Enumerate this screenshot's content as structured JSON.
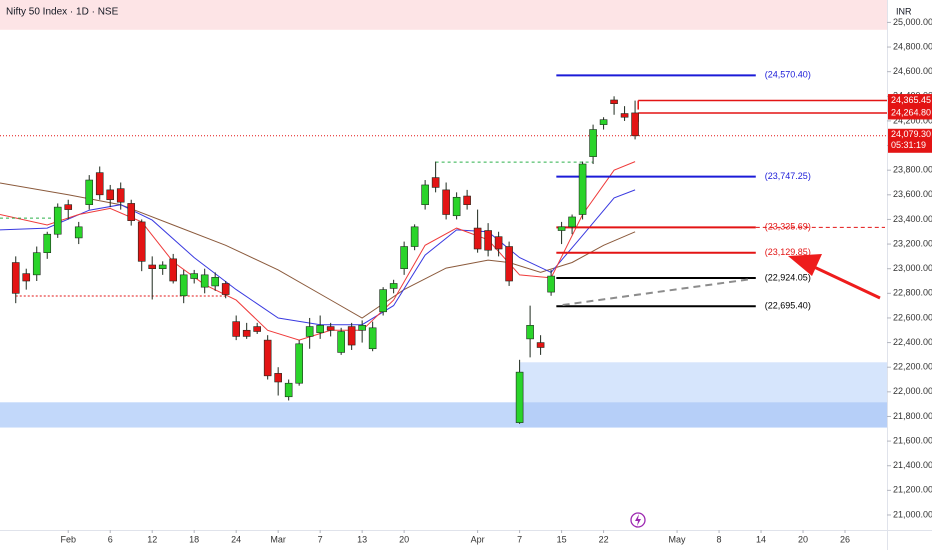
{
  "chart_data": {
    "type": "candlestick",
    "title": "Nifty 50 Index · 1D · NSE",
    "currency": "INR",
    "up_color": "#2ad42a",
    "down_color": "#e31414",
    "x": [
      0,
      1,
      2,
      3,
      4,
      5,
      6,
      7,
      8,
      9,
      10,
      11,
      12,
      13,
      14,
      15,
      16,
      17,
      18,
      19,
      20,
      21,
      22,
      23,
      24,
      25,
      26,
      27,
      28,
      29,
      30,
      31,
      32,
      33,
      34,
      35,
      36,
      37,
      38,
      39,
      40,
      41,
      42,
      43,
      44,
      45,
      46,
      47,
      48,
      49,
      50,
      51,
      52,
      53,
      54,
      55,
      56,
      57,
      58,
      59
    ],
    "open": [
      23050,
      22960,
      22950,
      23130,
      23280,
      23520,
      23250,
      23520,
      23780,
      23640,
      23650,
      23530,
      23380,
      23030,
      23000,
      23080,
      22780,
      22920,
      22850,
      22860,
      22880,
      22570,
      22500,
      22530,
      22420,
      22150,
      21960,
      22070,
      22450,
      22480,
      22530,
      22320,
      22530,
      22500,
      22350,
      22650,
      22840,
      23000,
      23180,
      23520,
      23740,
      23640,
      23430,
      23590,
      23330,
      23310,
      23260,
      23180,
      21750,
      22430,
      22400,
      22810,
      23310,
      23340,
      23440,
      23910,
      24170,
      24370,
      24260,
      24265
    ],
    "high": [
      23100,
      23000,
      23180,
      23300,
      23530,
      23560,
      23380,
      23760,
      23830,
      23680,
      23700,
      23560,
      23400,
      23100,
      23060,
      23120,
      22990,
      22990,
      23000,
      22970,
      22900,
      22620,
      22560,
      22560,
      22460,
      22200,
      22100,
      22420,
      22600,
      22620,
      22560,
      22520,
      22560,
      22580,
      22570,
      22850,
      22910,
      23220,
      23360,
      23720,
      23870,
      23700,
      23620,
      23640,
      23480,
      23370,
      23300,
      23220,
      22260,
      22700,
      22460,
      22990,
      23380,
      23440,
      23870,
      24170,
      24230,
      24400,
      24320,
      24365
    ],
    "low": [
      22720,
      22830,
      22900,
      23080,
      23250,
      23400,
      23200,
      23480,
      23560,
      23500,
      23480,
      23350,
      22980,
      22750,
      22950,
      22880,
      22720,
      22880,
      22800,
      22820,
      22760,
      22420,
      22430,
      22470,
      22100,
      21970,
      21930,
      22050,
      22350,
      22430,
      22450,
      22300,
      22340,
      22400,
      22330,
      22620,
      22800,
      22950,
      23150,
      23480,
      23620,
      23400,
      23400,
      23480,
      23130,
      23100,
      23100,
      22860,
      21740,
      22280,
      22300,
      22780,
      23200,
      23280,
      23400,
      23850,
      24130,
      24250,
      24200,
      24050
    ],
    "close": [
      22800,
      22900,
      23130,
      23280,
      23500,
      23480,
      23340,
      23720,
      23600,
      23560,
      23540,
      23390,
      23060,
      23000,
      23030,
      22900,
      22950,
      22960,
      22950,
      22930,
      22790,
      22450,
      22450,
      22490,
      22130,
      22080,
      22070,
      22390,
      22530,
      22540,
      22500,
      22490,
      22380,
      22540,
      22520,
      22830,
      22880,
      23180,
      23340,
      23680,
      23660,
      23440,
      23580,
      23520,
      23160,
      23150,
      23160,
      22900,
      22160,
      22540,
      22360,
      22940,
      23340,
      23420,
      23850,
      24130,
      24210,
      24340,
      24230,
      24079.3
    ],
    "xlim": [
      -1.5,
      83
    ],
    "ylim": [
      20878,
      25182
    ],
    "xticks": [
      {
        "value": 5,
        "label": "Feb"
      },
      {
        "value": 9,
        "label": "6"
      },
      {
        "value": 13,
        "label": "12"
      },
      {
        "value": 17,
        "label": "18"
      },
      {
        "value": 21,
        "label": "24"
      },
      {
        "value": 25,
        "label": "Mar"
      },
      {
        "value": 29,
        "label": "7"
      },
      {
        "value": 33,
        "label": "13"
      },
      {
        "value": 37,
        "label": "20"
      },
      {
        "value": 44,
        "label": "Apr"
      },
      {
        "value": 48,
        "label": "7"
      },
      {
        "value": 52,
        "label": "15"
      },
      {
        "value": 56,
        "label": "22"
      },
      {
        "value": 63,
        "label": "May"
      },
      {
        "value": 67,
        "label": "8"
      },
      {
        "value": 71,
        "label": "14"
      },
      {
        "value": 75,
        "label": "20"
      },
      {
        "value": 79,
        "label": "26"
      }
    ],
    "yticks": [
      {
        "value": 21000,
        "label": "21,000.00"
      },
      {
        "value": 21200,
        "label": "21,200.00"
      },
      {
        "value": 21400,
        "label": "21,400.00"
      },
      {
        "value": 21600,
        "label": "21,600.00"
      },
      {
        "value": 21800,
        "label": "21,800.00"
      },
      {
        "value": 22000,
        "label": "22,000.00"
      },
      {
        "value": 22200,
        "label": "22,200.00"
      },
      {
        "value": 22400,
        "label": "22,400.00"
      },
      {
        "value": 22600,
        "label": "22,600.00"
      },
      {
        "value": 22800,
        "label": "22,800.00"
      },
      {
        "value": 23000,
        "label": "23,000.00"
      },
      {
        "value": 23200,
        "label": "23,200.00"
      },
      {
        "value": 23400,
        "label": "23,400.00"
      },
      {
        "value": 23600,
        "label": "23,600.00"
      },
      {
        "value": 23800,
        "label": "23,800.00"
      },
      {
        "value": 24000,
        "label": "24,000.00"
      },
      {
        "value": 24200,
        "label": "24,200.00"
      },
      {
        "value": 24400,
        "label": "24,400.00"
      },
      {
        "value": 24600,
        "label": "24,600.00"
      },
      {
        "value": 24800,
        "label": "24,800.00"
      },
      {
        "value": 25000,
        "label": "25,000.00"
      }
    ],
    "zones": [
      {
        "x": [
          -1.5,
          83
        ],
        "ylim": [
          24940,
          25182
        ],
        "color": "#fde4e6"
      },
      {
        "x": [
          48,
          83
        ],
        "ylim": [
          21710,
          22240
        ],
        "color": "#d6e5fc"
      },
      {
        "x": [
          -1.5,
          48
        ],
        "ylim": [
          21710,
          21915
        ],
        "color": "#c2d8fa"
      },
      {
        "x": [
          48,
          83
        ],
        "ylim": [
          21710,
          21915
        ],
        "color": "#b6cff8"
      }
    ],
    "moving_averages": [
      {
        "color": "#8b5a3c",
        "x": [
          -1.5,
          5,
          10,
          15,
          20,
          25,
          30,
          33,
          37,
          41,
          45,
          47,
          50,
          53,
          56,
          59
        ],
        "values": [
          23696,
          23600,
          23520,
          23355,
          23190,
          22990,
          22746,
          22600,
          22830,
          23005,
          23070,
          23050,
          22970,
          23050,
          23190,
          23300
        ]
      },
      {
        "color": "#3a3ae0",
        "x": [
          -1.5,
          3,
          7,
          10,
          13,
          17,
          21,
          25,
          29,
          33,
          36,
          39,
          42,
          45,
          48,
          51,
          54,
          57,
          59
        ],
        "values": [
          23315,
          23330,
          23475,
          23520,
          23395,
          23090,
          22830,
          22600,
          22545,
          22545,
          22700,
          23110,
          23315,
          23300,
          23090,
          22970,
          23270,
          23575,
          23640
        ]
      },
      {
        "color": "#ef3b3b",
        "x": [
          -1.5,
          3,
          6,
          9,
          12,
          15,
          18,
          21,
          24,
          27,
          30,
          33,
          36,
          39,
          42,
          45,
          48,
          51,
          54,
          57,
          59
        ],
        "values": [
          23440,
          23355,
          23440,
          23490,
          23380,
          23055,
          22870,
          22745,
          22500,
          22420,
          22500,
          22500,
          22745,
          23190,
          23330,
          23235,
          22950,
          22925,
          23440,
          23800,
          23870
        ]
      }
    ],
    "levels": [
      {
        "value": 24570.4,
        "label": "(24,570.40)",
        "x": [
          51.5,
          70.5
        ],
        "color": "#1b1bd8",
        "width": 2
      },
      {
        "value": 23747.25,
        "label": "(23,747.25)",
        "x": [
          51.5,
          70.5
        ],
        "color": "#1b1bd8",
        "width": 2
      },
      {
        "value": 23335.69,
        "label": "(23,335.69)",
        "x": [
          51.5,
          70.5
        ],
        "color": "#e31414",
        "width": 2,
        "extend_dashed": true
      },
      {
        "value": 23129.85,
        "label": "(23,129.85)",
        "x": [
          51.5,
          70.5
        ],
        "color": "#e31414",
        "width": 2
      },
      {
        "value": 22924.05,
        "label": "(22,924.05)",
        "x": [
          51.5,
          70.5
        ],
        "color": "#000000",
        "width": 2
      },
      {
        "value": 22695.4,
        "label": "(22,695.40)",
        "x": [
          51.5,
          70.5
        ],
        "color": "#000000",
        "width": 2
      },
      {
        "value": 23865,
        "x": [
          40,
          55
        ],
        "color": "#2bb04a",
        "width": 1,
        "dash": "3,3"
      },
      {
        "value": 23411,
        "x": [
          -1.5,
          3.5
        ],
        "color": "#2bb04a",
        "width": 1,
        "dash": "3,3"
      },
      {
        "value": 22778,
        "x": [
          0,
          20
        ],
        "color": "#e31414",
        "width": 1,
        "dash": "2,2"
      }
    ],
    "badge_levels": [
      {
        "value": 24365.45,
        "label": "24,365.45",
        "x": [
          59.3,
          83
        ],
        "color": "#e31414"
      },
      {
        "value": 24264.8,
        "label": "24,264.80",
        "x": [
          59.3,
          83
        ],
        "color": "#e31414"
      }
    ],
    "trendline": {
      "x": [
        52.1,
        70.1
      ],
      "values": [
        22705,
        22916
      ],
      "color": "#8c8c8c"
    },
    "current_price": {
      "value": 24079.3,
      "label": "24,079.30",
      "countdown": "05:31:19",
      "color": "#e31414"
    }
  }
}
